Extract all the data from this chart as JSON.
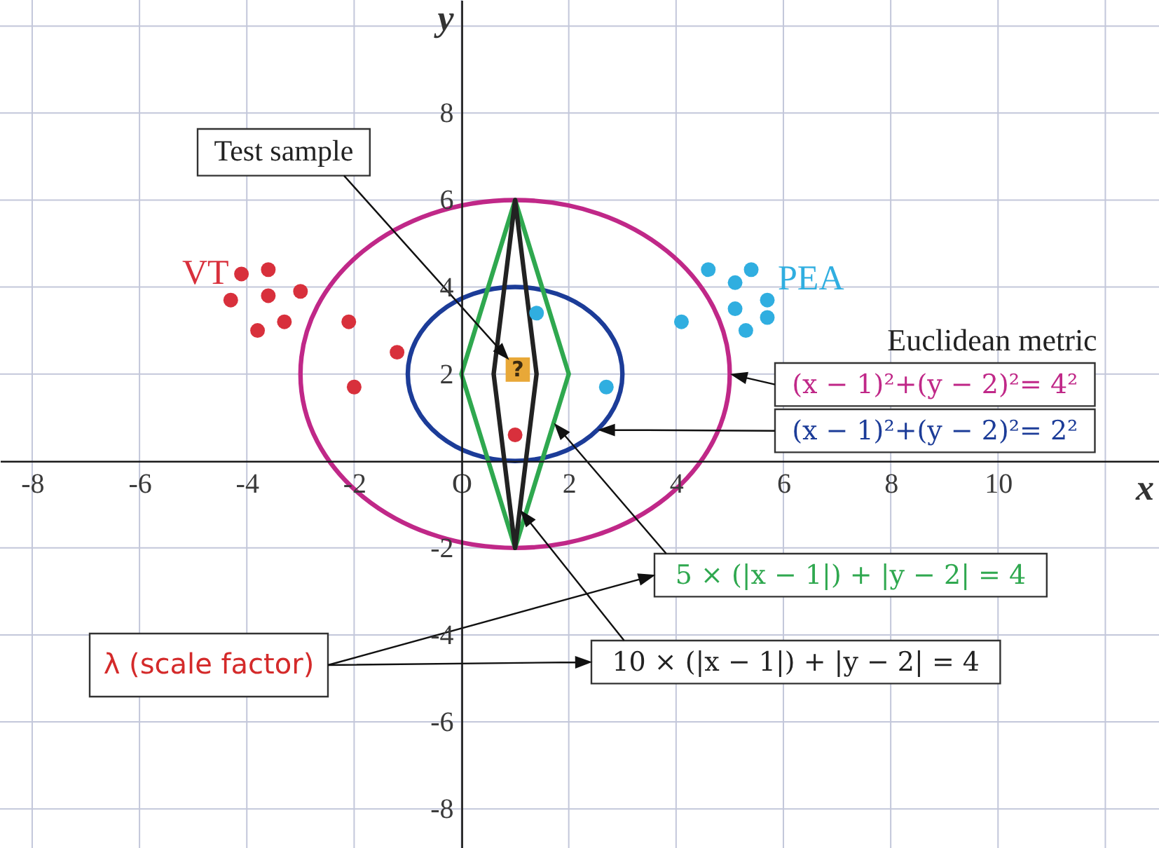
{
  "chart_data": {
    "type": "scatter",
    "xlabel": "x",
    "ylabel": "y",
    "xlim": [
      -8.6,
      13
    ],
    "ylim": [
      -8.9,
      10.6
    ],
    "xticks": [
      -8,
      -6,
      -4,
      -2,
      {
        "value": 0,
        "label": "O"
      },
      2,
      4,
      6,
      8,
      10,
      {
        "value": 12,
        "label": null
      }
    ],
    "yticks": [
      -8,
      -6,
      -4,
      -2,
      2,
      4,
      6,
      8,
      {
        "value": 10,
        "label": null
      }
    ],
    "grid": true,
    "annotations": [
      "Euclidean metric",
      "(x − 1)²+(y − 2)²= 4²",
      "(x − 1)²+(y − 2)²= 2²",
      "5 × (|x − 1|) + |y − 2| = 4",
      "10 × (|x − 1|) + |y − 2| = 4",
      "λ (scale factor)"
    ],
    "series": [
      {
        "name": "VT",
        "marker": "circle",
        "color": "#d8303c",
        "x": [
          -4.1,
          -3.6,
          -4.3,
          -3.6,
          -3.0,
          -3.8,
          -3.3,
          -2.1,
          -1.2,
          -2.0,
          1.0
        ],
        "values": [
          4.3,
          4.4,
          3.7,
          3.8,
          3.9,
          3.0,
          3.2,
          3.2,
          2.5,
          1.7,
          0.6
        ]
      },
      {
        "name": "PEA",
        "marker": "circle",
        "color": "#30aee0",
        "x": [
          5.4,
          4.6,
          5.1,
          5.7,
          5.1,
          5.7,
          4.1,
          5.3,
          2.7,
          1.4
        ],
        "values": [
          4.4,
          4.4,
          4.1,
          3.7,
          3.5,
          3.3,
          3.2,
          3.0,
          1.7,
          3.4
        ]
      },
      {
        "name": "Test sample",
        "marker": "square",
        "color": "#e8a838",
        "x": [
          1.05
        ],
        "values": [
          2.1
        ],
        "value_labels": [
          "?"
        ]
      }
    ]
  }
}
